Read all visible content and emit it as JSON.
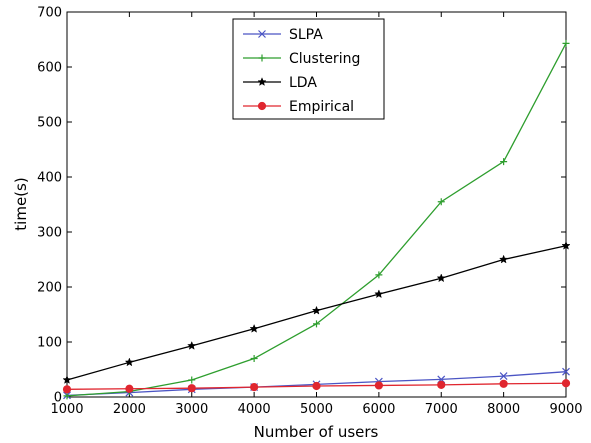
{
  "chart_data": {
    "type": "line",
    "title": "",
    "xlabel": "Number of users",
    "ylabel": "time(s)",
    "xlim": [
      1000,
      9000
    ],
    "ylim": [
      0,
      700
    ],
    "xticks": [
      1000,
      2000,
      3000,
      4000,
      5000,
      6000,
      7000,
      8000,
      9000
    ],
    "yticks": [
      0,
      100,
      200,
      300,
      400,
      500,
      600,
      700
    ],
    "grid": false,
    "legend_position": "top-center",
    "x": [
      1000,
      2000,
      3000,
      4000,
      5000,
      6000,
      7000,
      8000,
      9000
    ],
    "series": [
      {
        "name": "SLPA",
        "color": "#4b55c4",
        "marker": "x",
        "values": [
          3,
          8,
          14,
          18,
          23,
          28,
          32,
          38,
          46
        ]
      },
      {
        "name": "Clustering",
        "color": "#2e9e2e",
        "marker": "plus",
        "values": [
          2,
          10,
          31,
          70,
          133,
          222,
          355,
          428,
          643
        ]
      },
      {
        "name": "LDA",
        "color": "#000000",
        "marker": "star",
        "values": [
          31,
          63,
          93,
          124,
          157,
          187,
          216,
          250,
          275
        ]
      },
      {
        "name": "Empirical",
        "color": "#e0262f",
        "marker": "circle",
        "values": [
          14,
          15,
          16,
          18,
          20,
          21,
          22,
          24,
          25
        ]
      }
    ]
  }
}
